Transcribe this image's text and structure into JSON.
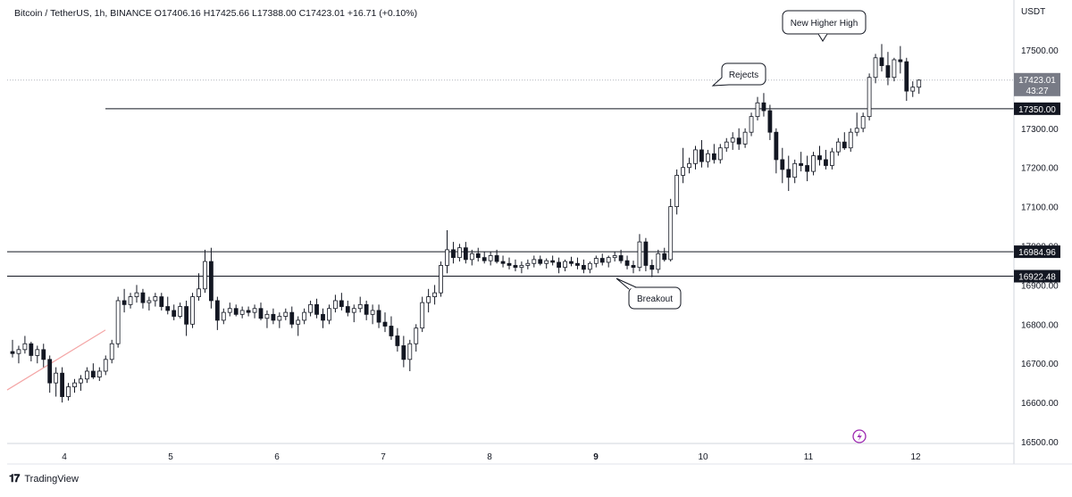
{
  "header": {
    "symbol": "Bitcoin / TetherUS, 1h, BINANCE",
    "open": "O17406.16",
    "high": "H17425.66",
    "low": "L17388.00",
    "close": "C17423.01",
    "change": "+16.71 (+0.10%)"
  },
  "footer": {
    "brand": "TradingView"
  },
  "chart_data": {
    "type": "candlestick",
    "title": "Bitcoin / TetherUS, 1h, BINANCE",
    "ylabel": "USDT",
    "ylim": [
      16480,
      17595
    ],
    "y_ticks": [
      "17500.00",
      "17400.00",
      "17300.00",
      "17200.00",
      "17100.00",
      "17000.00",
      "16900.00",
      "16800.00",
      "16700.00",
      "16600.00",
      "16500.00"
    ],
    "x_ticks": [
      "4",
      "5",
      "6",
      "7",
      "8",
      "9",
      "10",
      "11",
      "12"
    ],
    "current_price": "17423.01",
    "countdown": "43:27",
    "horizontal_levels": [
      {
        "label": "17350.00",
        "value": 17350.0
      },
      {
        "label": "16984.96",
        "value": 16984.96
      },
      {
        "label": "16922.48",
        "value": 16922.48
      }
    ],
    "annotations": [
      {
        "text": "New Higher High"
      },
      {
        "text": "Rejects"
      },
      {
        "text": "Breakout"
      }
    ],
    "grid": false,
    "colors": {
      "bull": "#ffffff",
      "bear": "#131722",
      "wick": "#131722",
      "trend": "#f4a6a6",
      "alert": "#9c27b0"
    },
    "candles": [
      [
        16730,
        16760,
        16715,
        16725
      ],
      [
        16725,
        16745,
        16700,
        16735
      ],
      [
        16735,
        16770,
        16725,
        16750
      ],
      [
        16750,
        16755,
        16705,
        16720
      ],
      [
        16720,
        16745,
        16700,
        16735
      ],
      [
        16735,
        16750,
        16690,
        16710
      ],
      [
        16710,
        16720,
        16625,
        16650
      ],
      [
        16650,
        16690,
        16615,
        16675
      ],
      [
        16675,
        16690,
        16600,
        16615
      ],
      [
        16615,
        16650,
        16605,
        16640
      ],
      [
        16640,
        16660,
        16625,
        16650
      ],
      [
        16650,
        16670,
        16630,
        16660
      ],
      [
        16660,
        16690,
        16650,
        16680
      ],
      [
        16680,
        16700,
        16660,
        16665
      ],
      [
        16665,
        16690,
        16655,
        16680
      ],
      [
        16680,
        16720,
        16670,
        16710
      ],
      [
        16710,
        16760,
        16700,
        16750
      ],
      [
        16750,
        16870,
        16740,
        16860
      ],
      [
        16860,
        16890,
        16830,
        16850
      ],
      [
        16850,
        16880,
        16840,
        16870
      ],
      [
        16870,
        16900,
        16855,
        16880
      ],
      [
        16880,
        16890,
        16840,
        16855
      ],
      [
        16855,
        16870,
        16835,
        16860
      ],
      [
        16860,
        16880,
        16845,
        16870
      ],
      [
        16870,
        16880,
        16835,
        16845
      ],
      [
        16845,
        16870,
        16825,
        16835
      ],
      [
        16835,
        16850,
        16810,
        16820
      ],
      [
        16820,
        16855,
        16815,
        16845
      ],
      [
        16845,
        16860,
        16770,
        16800
      ],
      [
        16800,
        16880,
        16790,
        16870
      ],
      [
        16870,
        16930,
        16860,
        16890
      ],
      [
        16890,
        16990,
        16880,
        16960
      ],
      [
        16960,
        16995,
        16840,
        16860
      ],
      [
        16860,
        16870,
        16785,
        16810
      ],
      [
        16810,
        16840,
        16800,
        16830
      ],
      [
        16830,
        16855,
        16820,
        16840
      ],
      [
        16840,
        16850,
        16820,
        16825
      ],
      [
        16825,
        16845,
        16815,
        16835
      ],
      [
        16835,
        16845,
        16820,
        16830
      ],
      [
        16830,
        16850,
        16815,
        16840
      ],
      [
        16840,
        16855,
        16810,
        16815
      ],
      [
        16815,
        16835,
        16790,
        16825
      ],
      [
        16825,
        16840,
        16800,
        16810
      ],
      [
        16810,
        16830,
        16790,
        16820
      ],
      [
        16820,
        16840,
        16810,
        16830
      ],
      [
        16830,
        16845,
        16790,
        16800
      ],
      [
        16800,
        16820,
        16770,
        16810
      ],
      [
        16810,
        16840,
        16800,
        16830
      ],
      [
        16830,
        16860,
        16820,
        16850
      ],
      [
        16850,
        16865,
        16815,
        16825
      ],
      [
        16825,
        16840,
        16790,
        16810
      ],
      [
        16810,
        16850,
        16800,
        16840
      ],
      [
        16840,
        16875,
        16830,
        16860
      ],
      [
        16860,
        16880,
        16835,
        16845
      ],
      [
        16845,
        16860,
        16820,
        16830
      ],
      [
        16830,
        16850,
        16805,
        16840
      ],
      [
        16840,
        16870,
        16830,
        16850
      ],
      [
        16850,
        16860,
        16810,
        16825
      ],
      [
        16825,
        16850,
        16800,
        16835
      ],
      [
        16835,
        16850,
        16790,
        16805
      ],
      [
        16805,
        16830,
        16780,
        16795
      ],
      [
        16795,
        16820,
        16760,
        16770
      ],
      [
        16770,
        16790,
        16730,
        16745
      ],
      [
        16745,
        16770,
        16690,
        16710
      ],
      [
        16710,
        16760,
        16680,
        16750
      ],
      [
        16750,
        16800,
        16730,
        16790
      ],
      [
        16790,
        16870,
        16780,
        16855
      ],
      [
        16855,
        16890,
        16830,
        16870
      ],
      [
        16870,
        16900,
        16850,
        16880
      ],
      [
        16880,
        16960,
        16870,
        16950
      ],
      [
        16950,
        17040,
        16930,
        16990
      ],
      [
        16990,
        17010,
        16955,
        16970
      ],
      [
        16970,
        17005,
        16960,
        16995
      ],
      [
        16995,
        17010,
        16955,
        16965
      ],
      [
        16965,
        16990,
        16950,
        16980
      ],
      [
        16980,
        16995,
        16960,
        16970
      ],
      [
        16970,
        16985,
        16955,
        16962
      ],
      [
        16962,
        16985,
        16950,
        16975
      ],
      [
        16975,
        16990,
        16955,
        16960
      ],
      [
        16960,
        16975,
        16945,
        16955
      ],
      [
        16955,
        16970,
        16940,
        16950
      ],
      [
        16950,
        16965,
        16935,
        16945
      ],
      [
        16945,
        16960,
        16930,
        16950
      ],
      [
        16950,
        16965,
        16940,
        16955
      ],
      [
        16955,
        16975,
        16945,
        16965
      ],
      [
        16965,
        16975,
        16950,
        16955
      ],
      [
        16955,
        16968,
        16942,
        16962
      ],
      [
        16962,
        16975,
        16950,
        16958
      ],
      [
        16958,
        16970,
        16930,
        16945
      ],
      [
        16945,
        16965,
        16935,
        16960
      ],
      [
        16960,
        16972,
        16948,
        16955
      ],
      [
        16955,
        16970,
        16940,
        16950
      ],
      [
        16950,
        16965,
        16930,
        16940
      ],
      [
        16940,
        16960,
        16930,
        16955
      ],
      [
        16955,
        16975,
        16945,
        16968
      ],
      [
        16968,
        16980,
        16950,
        16958
      ],
      [
        16958,
        16975,
        16945,
        16970
      ],
      [
        16970,
        16985,
        16960,
        16975
      ],
      [
        16975,
        16990,
        16955,
        16962
      ],
      [
        16962,
        16975,
        16940,
        16950
      ],
      [
        16950,
        16962,
        16930,
        16945
      ],
      [
        16945,
        17030,
        16935,
        17010
      ],
      [
        17010,
        17020,
        16935,
        16950
      ],
      [
        16950,
        16965,
        16920,
        16940
      ],
      [
        16940,
        16990,
        16930,
        16980
      ],
      [
        16980,
        16995,
        16960,
        16965
      ],
      [
        16965,
        17120,
        16960,
        17100
      ],
      [
        17100,
        17195,
        17080,
        17180
      ],
      [
        17180,
        17250,
        17160,
        17200
      ],
      [
        17200,
        17225,
        17185,
        17210
      ],
      [
        17210,
        17255,
        17195,
        17245
      ],
      [
        17245,
        17270,
        17200,
        17215
      ],
      [
        17215,
        17245,
        17200,
        17235
      ],
      [
        17235,
        17260,
        17210,
        17220
      ],
      [
        17220,
        17260,
        17210,
        17250
      ],
      [
        17250,
        17275,
        17240,
        17265
      ],
      [
        17265,
        17290,
        17245,
        17275
      ],
      [
        17275,
        17300,
        17245,
        17260
      ],
      [
        17260,
        17300,
        17250,
        17290
      ],
      [
        17290,
        17340,
        17280,
        17330
      ],
      [
        17330,
        17380,
        17320,
        17365
      ],
      [
        17365,
        17390,
        17330,
        17345
      ],
      [
        17345,
        17360,
        17270,
        17290
      ],
      [
        17290,
        17300,
        17185,
        17220
      ],
      [
        17220,
        17250,
        17160,
        17195
      ],
      [
        17195,
        17230,
        17140,
        17175
      ],
      [
        17175,
        17220,
        17160,
        17210
      ],
      [
        17210,
        17240,
        17190,
        17205
      ],
      [
        17205,
        17230,
        17165,
        17190
      ],
      [
        17190,
        17240,
        17180,
        17230
      ],
      [
        17230,
        17255,
        17205,
        17220
      ],
      [
        17220,
        17245,
        17195,
        17205
      ],
      [
        17205,
        17250,
        17195,
        17240
      ],
      [
        17240,
        17275,
        17230,
        17265
      ],
      [
        17265,
        17290,
        17245,
        17250
      ],
      [
        17250,
        17300,
        17240,
        17290
      ],
      [
        17290,
        17340,
        17280,
        17300
      ],
      [
        17300,
        17340,
        17290,
        17330
      ],
      [
        17330,
        17440,
        17320,
        17430
      ],
      [
        17430,
        17490,
        17415,
        17480
      ],
      [
        17480,
        17515,
        17445,
        17460
      ],
      [
        17460,
        17495,
        17410,
        17430
      ],
      [
        17430,
        17480,
        17420,
        17475
      ],
      [
        17475,
        17510,
        17440,
        17470
      ],
      [
        17470,
        17480,
        17370,
        17395
      ],
      [
        17395,
        17420,
        17380,
        17405
      ],
      [
        17405,
        17425,
        17388,
        17423
      ]
    ]
  }
}
